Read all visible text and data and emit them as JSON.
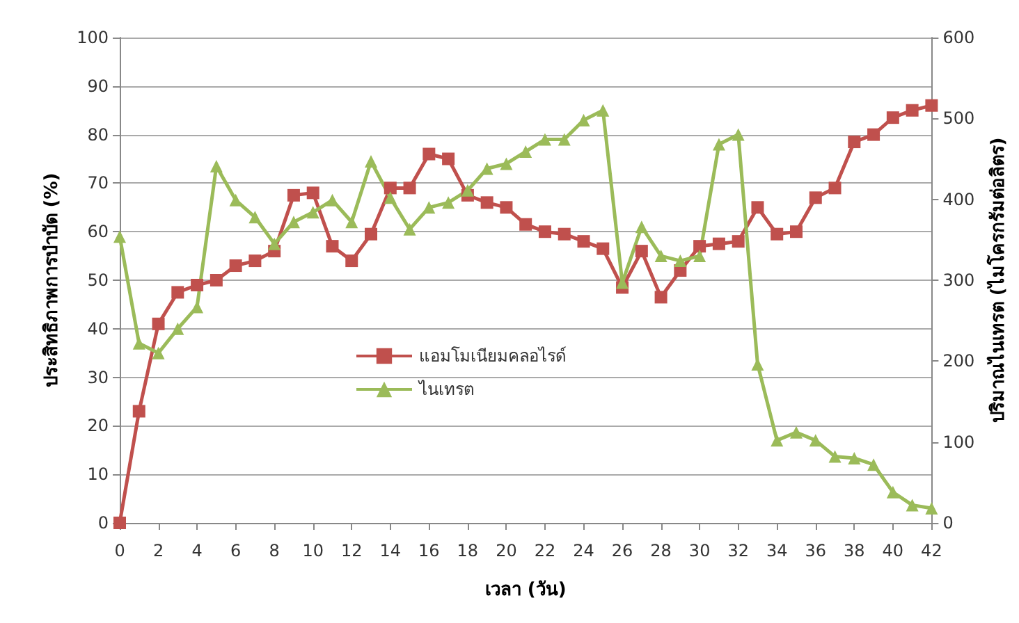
{
  "chart_data": {
    "type": "line",
    "xlabel": "เวลา (วัน)",
    "ylabel": "ประสิทธิภาพการบำบัด (%)",
    "y2label": "ปริมาณไนเทรต (ไมโครกรัมต่อลิตร)",
    "x": [
      0,
      1,
      2,
      3,
      4,
      5,
      6,
      7,
      8,
      9,
      10,
      11,
      12,
      13,
      14,
      15,
      16,
      17,
      18,
      19,
      20,
      21,
      22,
      23,
      24,
      25,
      26,
      27,
      28,
      29,
      30,
      31,
      32,
      33,
      34,
      35,
      36,
      37,
      38,
      39,
      40,
      41,
      42
    ],
    "xlim": [
      0,
      42
    ],
    "xticks": [
      0,
      2,
      4,
      6,
      8,
      10,
      12,
      14,
      16,
      18,
      20,
      22,
      24,
      26,
      28,
      30,
      32,
      34,
      36,
      38,
      40,
      42
    ],
    "ylim": [
      0,
      100
    ],
    "yticks": [
      0,
      10,
      20,
      30,
      40,
      50,
      60,
      70,
      80,
      90,
      100
    ],
    "y2lim": [
      0,
      600
    ],
    "y2ticks": [
      0,
      100,
      200,
      300,
      400,
      500,
      600
    ],
    "grid": "y",
    "legend": "left",
    "series": [
      {
        "name": "แอมโมเนียมคลอไรด์",
        "color": "#c0504d",
        "marker": "square",
        "values": [
          0,
          23,
          41,
          47.5,
          49,
          50,
          53,
          54,
          56,
          67.5,
          68,
          57,
          54,
          59.5,
          69,
          69,
          76,
          75,
          67.5,
          66,
          65,
          61.5,
          60,
          59.5,
          58,
          56.5,
          48.5,
          56,
          46.5,
          52,
          57,
          57.5,
          58,
          65,
          59.5,
          60,
          67,
          69,
          78.5,
          80,
          83.5,
          85,
          86
        ]
      },
      {
        "name": "ไนเทรต",
        "color": "#9bbb59",
        "marker": "triangle",
        "axis": "y2",
        "values": [
          354,
          222,
          210,
          240,
          267,
          441,
          399,
          378,
          345,
          372,
          384,
          399,
          372,
          447,
          402,
          363,
          390,
          396,
          411,
          438,
          444,
          459,
          474,
          474,
          498,
          510,
          297,
          366,
          330,
          324,
          330,
          468,
          480,
          196,
          102,
          112,
          102,
          82,
          80,
          72,
          38,
          22,
          18
        ]
      }
    ]
  }
}
